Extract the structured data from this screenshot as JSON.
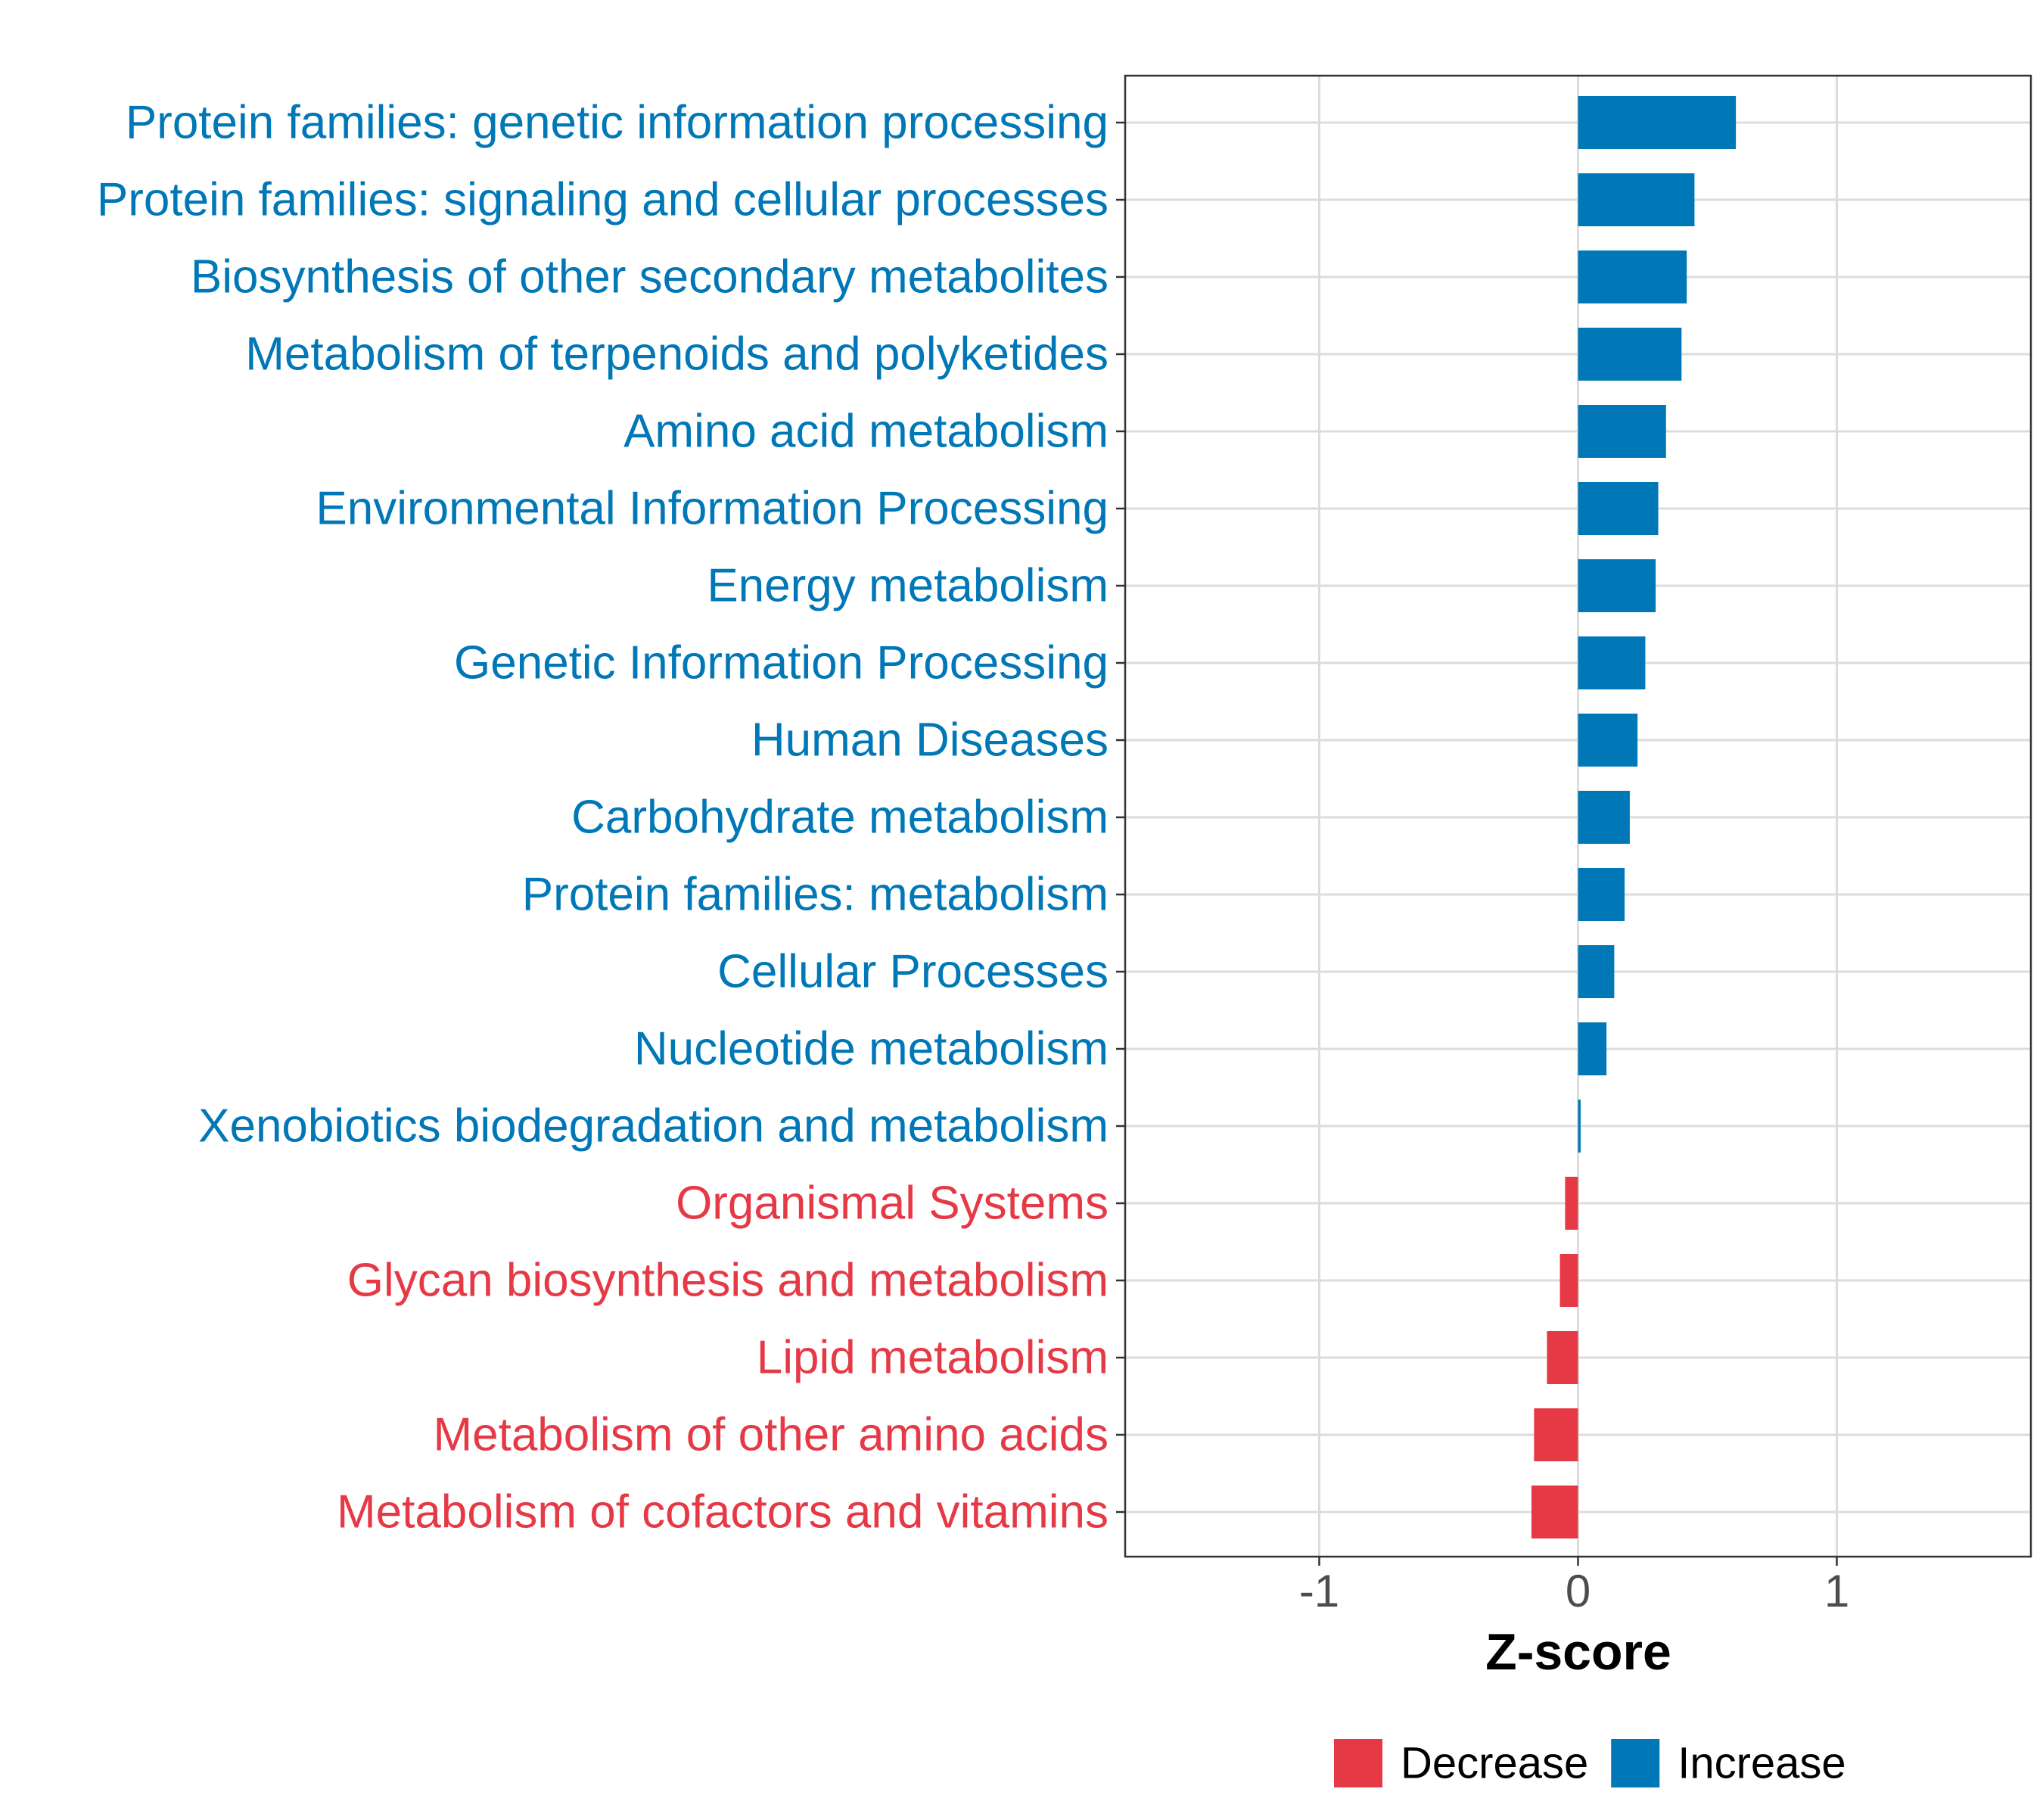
{
  "chart_data": {
    "type": "bar",
    "orientation": "horizontal",
    "title": "",
    "xlabel": "Z-score",
    "ylabel": "",
    "xlim": [
      -1.75,
      1.75
    ],
    "xticks": [
      -1,
      0,
      1
    ],
    "xtick_labels": [
      "-1",
      "0",
      "1"
    ],
    "grid": true,
    "legend_position": "bottom",
    "legend": [
      {
        "key": "decrease",
        "label": "Decrease",
        "color": "#E63946"
      },
      {
        "key": "increase",
        "label": "Increase",
        "color": "#0077B6"
      }
    ],
    "categories": [
      "Protein families: genetic information processing",
      "Protein families: signaling and cellular processes",
      "Biosynthesis of other secondary metabolites",
      "Metabolism of terpenoids and polyketides",
      "Amino acid metabolism",
      "Environmental Information Processing",
      "Energy metabolism",
      "Genetic Information Processing",
      "Human Diseases",
      "Carbohydrate metabolism",
      "Protein families: metabolism",
      "Cellular Processes",
      "Nucleotide metabolism",
      "Xenobiotics biodegradation and metabolism",
      "Organismal Systems",
      "Glycan biosynthesis and metabolism",
      "Lipid metabolism",
      "Metabolism of other amino acids",
      "Metabolism of cofactors and vitamins"
    ],
    "values": [
      0.61,
      0.45,
      0.42,
      0.4,
      0.34,
      0.31,
      0.3,
      0.26,
      0.23,
      0.2,
      0.18,
      0.14,
      0.11,
      0.01,
      -0.05,
      -0.07,
      -0.12,
      -0.17,
      -0.18
    ]
  }
}
